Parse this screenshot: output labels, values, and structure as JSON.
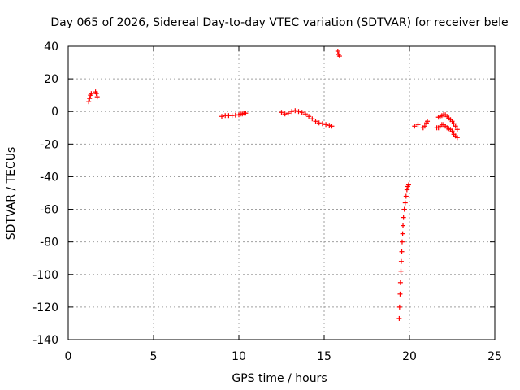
{
  "chart_data": {
    "type": "scatter",
    "title": "Day 065 of 2026, Sidereal Day-to-day VTEC variation (SDTVAR) for receiver bele",
    "xlabel": "GPS time / hours",
    "ylabel": "SDTVAR / TECUs",
    "xlim": [
      0,
      25
    ],
    "ylim": [
      -140,
      40
    ],
    "grid": true,
    "xticks": [
      0,
      5,
      10,
      15,
      20,
      25
    ],
    "yticks": [
      40,
      20,
      0,
      -20,
      -40,
      -60,
      -80,
      -100,
      -120,
      -140
    ],
    "series": [
      {
        "name": "SDTVAR",
        "color": "#ff0000",
        "marker": "+",
        "points": [
          [
            1.2,
            6
          ],
          [
            1.25,
            8
          ],
          [
            1.3,
            10
          ],
          [
            1.35,
            11
          ],
          [
            1.6,
            12
          ],
          [
            1.65,
            11
          ],
          [
            1.7,
            9
          ],
          [
            9.0,
            -3
          ],
          [
            9.2,
            -2.5
          ],
          [
            9.4,
            -2.5
          ],
          [
            9.6,
            -2.5
          ],
          [
            9.8,
            -2.2
          ],
          [
            10.0,
            -2
          ],
          [
            10.1,
            -1.5
          ],
          [
            10.2,
            -1.5
          ],
          [
            10.3,
            -1
          ],
          [
            10.4,
            -1
          ],
          [
            12.5,
            -0.5
          ],
          [
            12.7,
            -1.5
          ],
          [
            12.9,
            -1
          ],
          [
            13.1,
            0
          ],
          [
            13.3,
            0.5
          ],
          [
            13.5,
            0
          ],
          [
            13.7,
            -0.5
          ],
          [
            13.9,
            -1.5
          ],
          [
            14.1,
            -3
          ],
          [
            14.3,
            -4.5
          ],
          [
            14.5,
            -6
          ],
          [
            14.7,
            -7
          ],
          [
            14.9,
            -7.5
          ],
          [
            15.1,
            -8
          ],
          [
            15.3,
            -8.5
          ],
          [
            15.45,
            -9
          ],
          [
            15.8,
            37
          ],
          [
            15.85,
            35
          ],
          [
            15.9,
            34
          ],
          [
            19.4,
            -127
          ],
          [
            19.42,
            -120
          ],
          [
            19.45,
            -112
          ],
          [
            19.47,
            -105
          ],
          [
            19.5,
            -98
          ],
          [
            19.52,
            -92
          ],
          [
            19.55,
            -86
          ],
          [
            19.57,
            -80
          ],
          [
            19.6,
            -75
          ],
          [
            19.62,
            -70
          ],
          [
            19.65,
            -65
          ],
          [
            19.7,
            -60
          ],
          [
            19.75,
            -56
          ],
          [
            19.8,
            -52
          ],
          [
            19.85,
            -48
          ],
          [
            19.9,
            -46
          ],
          [
            19.95,
            -45
          ],
          [
            20.3,
            -9
          ],
          [
            20.5,
            -8
          ],
          [
            20.8,
            -10
          ],
          [
            20.9,
            -9
          ],
          [
            21.0,
            -7
          ],
          [
            21.05,
            -6
          ],
          [
            21.6,
            -10
          ],
          [
            21.7,
            -10
          ],
          [
            21.8,
            -9
          ],
          [
            21.9,
            -8
          ],
          [
            22.0,
            -8
          ],
          [
            22.1,
            -9
          ],
          [
            22.2,
            -10
          ],
          [
            22.3,
            -10.5
          ],
          [
            22.4,
            -11
          ],
          [
            22.5,
            -12
          ],
          [
            22.6,
            -14
          ],
          [
            22.7,
            -15
          ],
          [
            22.8,
            -16
          ],
          [
            21.7,
            -3.5
          ],
          [
            21.8,
            -3
          ],
          [
            21.9,
            -2.5
          ],
          [
            22.0,
            -2
          ],
          [
            22.1,
            -2
          ],
          [
            22.2,
            -3
          ],
          [
            22.3,
            -4
          ],
          [
            22.4,
            -5
          ],
          [
            22.5,
            -6
          ],
          [
            22.6,
            -7.5
          ],
          [
            22.7,
            -9
          ],
          [
            22.8,
            -11
          ]
        ]
      }
    ]
  }
}
